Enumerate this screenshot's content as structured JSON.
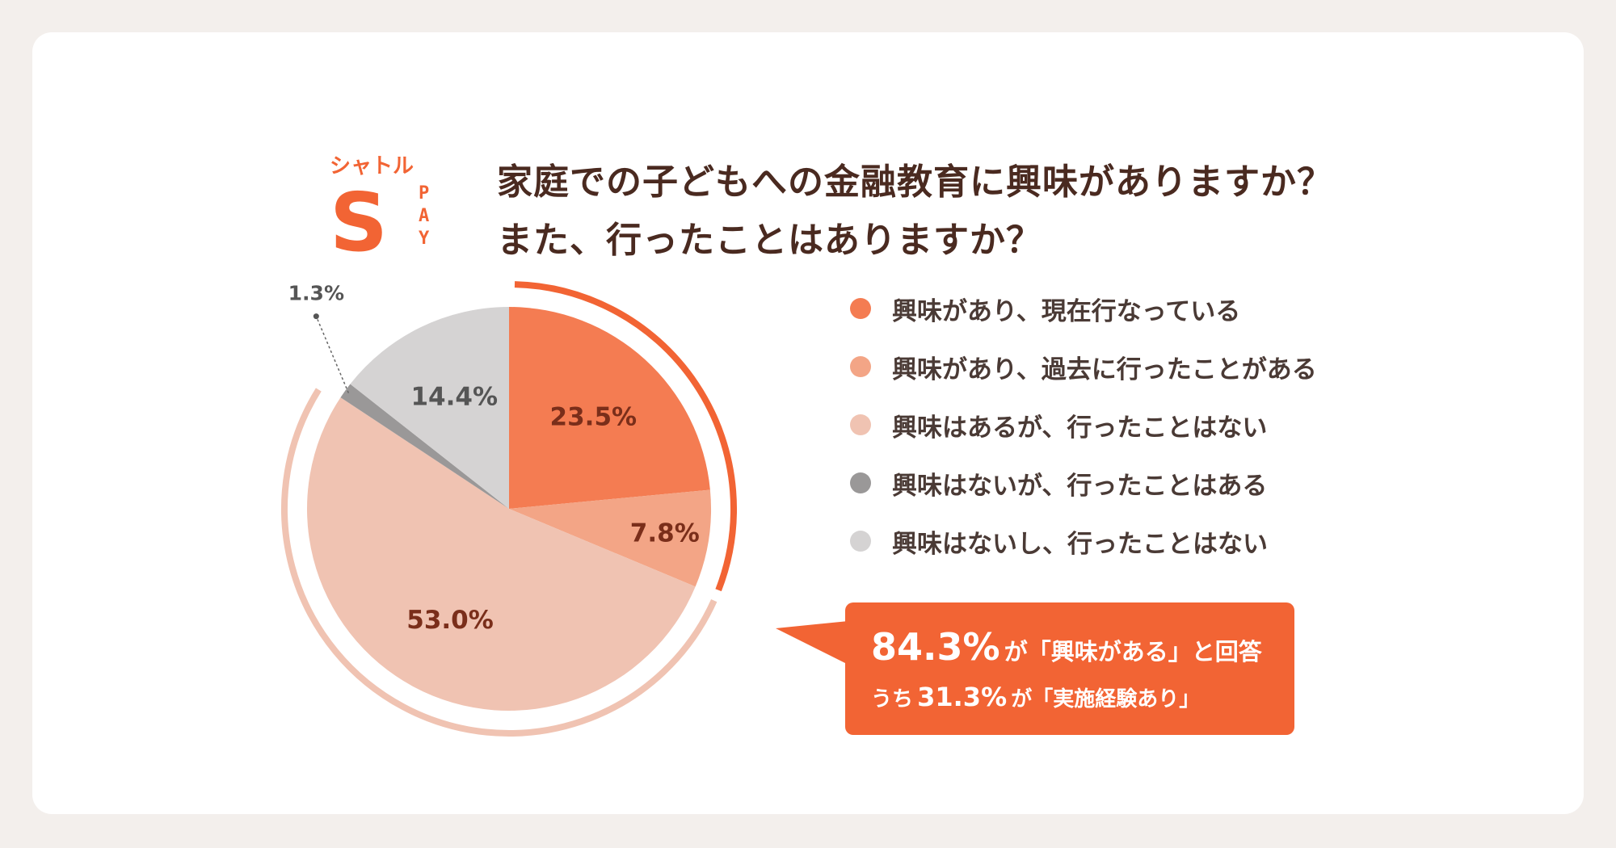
{
  "logo": {
    "top_text": "シャトル",
    "letter": "S",
    "side_text": "PAY",
    "color": "#f26434"
  },
  "title": {
    "line1": "家庭での子どもへの金融教育に興味がありますか？",
    "line2": "また、行ったことはありますか？"
  },
  "chart_data": {
    "type": "pie",
    "start": "top",
    "direction": "clockwise",
    "slices": [
      {
        "label": "興味があり、現在行なっている",
        "value": 23.5,
        "value_label": "23.5%",
        "color": "#f47c52"
      },
      {
        "label": "興味があり、過去に行ったことがある",
        "value": 7.8,
        "value_label": "7.8%",
        "color": "#f3a586"
      },
      {
        "label": "興味はあるが、行ったことはない",
        "value": 53.0,
        "value_label": "53.0%",
        "color": "#f0c3b2"
      },
      {
        "label": "興味はないが、行ったことはある",
        "value": 1.3,
        "value_label": "1.3%",
        "color": "#9a9898"
      },
      {
        "label": "興味はないし、行ったことはない",
        "value": 14.4,
        "value_label": "14.4%",
        "color": "#d5d3d3"
      }
    ],
    "outer_arcs": [
      {
        "covers": "experienced",
        "from": 0,
        "to": 31.3,
        "color": "#f26434"
      },
      {
        "covers": "interested",
        "from": 31.3,
        "to": 84.3,
        "color": "#f0c3b2"
      }
    ],
    "label_color": "#7a2e1a"
  },
  "callout": {
    "value1": "84.3%",
    "text1": "が「興味がある」と回答",
    "prefix2": "うち",
    "value2": "31.3%",
    "text2": "が「実施経験あり」"
  }
}
